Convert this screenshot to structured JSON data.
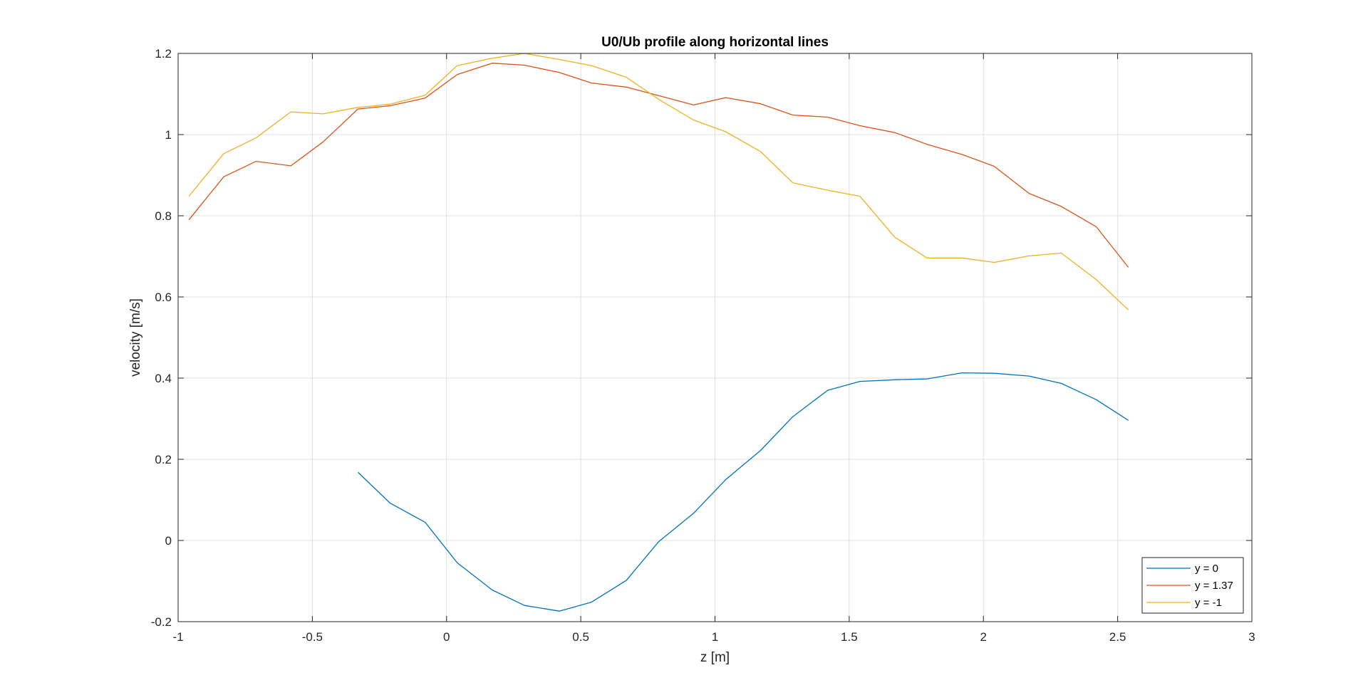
{
  "chart_data": {
    "type": "line",
    "title": "U0/Ub profile along horizontal lines",
    "xlabel": "z [m]",
    "ylabel": "velocity [m/s]",
    "xlim": [
      -1,
      3
    ],
    "ylim": [
      -0.2,
      1.2
    ],
    "xticks": [
      "-1",
      "-0.5",
      "0",
      "0.5",
      "1",
      "1.5",
      "2",
      "2.5",
      "3"
    ],
    "xtick_values": [
      -1,
      -0.5,
      0,
      0.5,
      1,
      1.5,
      2,
      2.5,
      3
    ],
    "yticks": [
      "-0.2",
      "0",
      "0.2",
      "0.4",
      "0.6",
      "0.8",
      "1",
      "1.2"
    ],
    "ytick_values": [
      -0.2,
      0,
      0.2,
      0.4,
      0.6,
      0.8,
      1.0,
      1.2
    ],
    "grid": true,
    "legend_position": "bottom-right",
    "series": [
      {
        "name": "y = 0",
        "color": "#0072BD",
        "x": [
          -0.33,
          -0.21,
          -0.08,
          0.04,
          0.17,
          0.29,
          0.42,
          0.54,
          0.67,
          0.79,
          0.92,
          1.04,
          1.17,
          1.29,
          1.42,
          1.54,
          1.67,
          1.79,
          1.92,
          2.04,
          2.17,
          2.29,
          2.42,
          2.54
        ],
        "y": [
          0.168,
          0.092,
          0.045,
          -0.055,
          -0.122,
          -0.16,
          -0.174,
          -0.152,
          -0.098,
          -0.003,
          0.067,
          0.15,
          0.222,
          0.305,
          0.37,
          0.392,
          0.396,
          0.398,
          0.413,
          0.412,
          0.405,
          0.387,
          0.347,
          0.296
        ]
      },
      {
        "name": "y = 1.37",
        "color": "#D95319",
        "x": [
          -0.96,
          -0.83,
          -0.71,
          -0.58,
          -0.46,
          -0.33,
          -0.21,
          -0.08,
          0.04,
          0.17,
          0.29,
          0.42,
          0.54,
          0.67,
          0.79,
          0.92,
          1.04,
          1.17,
          1.29,
          1.42,
          1.54,
          1.67,
          1.79,
          1.92,
          2.04,
          2.17,
          2.29,
          2.42,
          2.54
        ],
        "y": [
          0.79,
          0.896,
          0.934,
          0.923,
          0.982,
          1.063,
          1.071,
          1.09,
          1.148,
          1.176,
          1.171,
          1.153,
          1.127,
          1.117,
          1.096,
          1.073,
          1.091,
          1.076,
          1.048,
          1.043,
          1.022,
          1.005,
          0.976,
          0.951,
          0.922,
          0.855,
          0.823,
          0.773,
          0.673
        ]
      },
      {
        "name": "y = -1",
        "color": "#EDB120",
        "x": [
          -0.96,
          -0.83,
          -0.71,
          -0.58,
          -0.46,
          -0.33,
          -0.21,
          -0.08,
          0.04,
          0.17,
          0.29,
          0.42,
          0.54,
          0.67,
          0.79,
          0.92,
          1.04,
          1.17,
          1.29,
          1.42,
          1.54,
          1.67,
          1.79,
          1.92,
          2.04,
          2.17,
          2.29,
          2.42,
          2.54
        ],
        "y": [
          0.848,
          0.953,
          0.992,
          1.056,
          1.051,
          1.067,
          1.075,
          1.097,
          1.17,
          1.188,
          1.2,
          1.185,
          1.17,
          1.141,
          1.087,
          1.036,
          1.007,
          0.958,
          0.881,
          0.863,
          0.848,
          0.747,
          0.696,
          0.696,
          0.685,
          0.701,
          0.708,
          0.643,
          0.568
        ]
      }
    ]
  }
}
